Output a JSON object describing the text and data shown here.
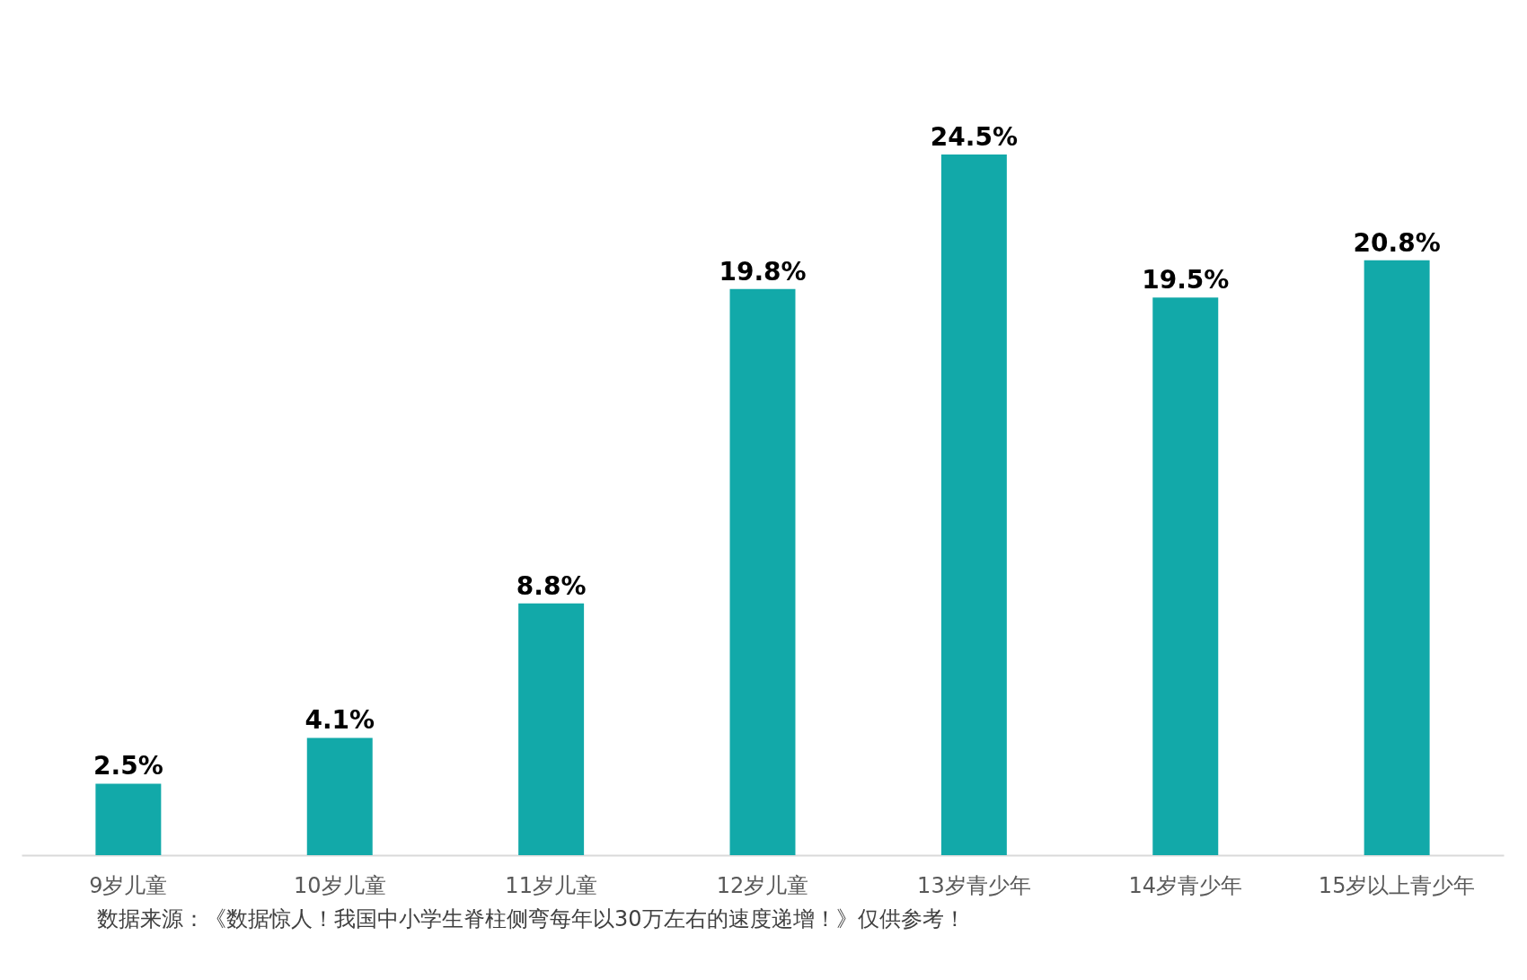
{
  "chart_data": {
    "type": "bar",
    "categories": [
      "9岁儿童",
      "10岁儿童",
      "11岁儿童",
      "12岁儿童",
      "13岁青少年",
      "14岁青少年",
      "15岁以上青少年"
    ],
    "values": [
      2.5,
      4.1,
      8.8,
      19.8,
      24.5,
      19.5,
      20.8
    ],
    "value_labels": [
      "2.5%",
      "4.1%",
      "8.8%",
      "19.8%",
      "24.5%",
      "19.5%",
      "20.8%"
    ],
    "color": "#12a9a9",
    "annotations": [
      "数据来源：《数据惊人！我国中小学生脊柱侧弯每年以30万左右的速度递增！》仅供参考！"
    ]
  }
}
